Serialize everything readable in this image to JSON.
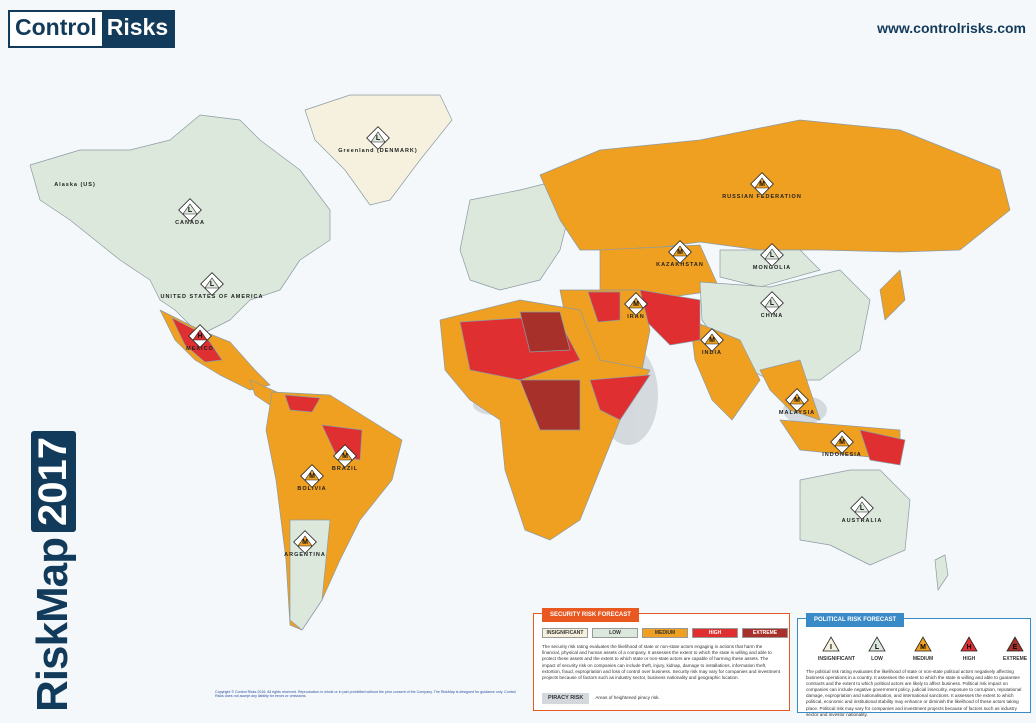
{
  "header": {
    "logo_left": "Control",
    "logo_right": "Risks",
    "url": "www.controlrisks.com"
  },
  "title": {
    "name": "RiskMap",
    "year": "2017"
  },
  "map": {
    "labels": [
      {
        "name": "Greenland (DENMARK)",
        "rating": "L"
      },
      {
        "name": "Alaska (US)"
      },
      {
        "name": "CANADA",
        "rating": "L"
      },
      {
        "name": "UNITED STATES OF AMERICA",
        "rating": "L"
      },
      {
        "name": "MEXICO",
        "rating": "H"
      },
      {
        "name": "BRAZIL",
        "rating": "M"
      },
      {
        "name": "BOLIVIA",
        "rating": "M"
      },
      {
        "name": "ARGENTINA",
        "rating": "M"
      },
      {
        "name": "RUSSIAN FEDERATION",
        "rating": "M"
      },
      {
        "name": "KAZAKHSTAN",
        "rating": "M"
      },
      {
        "name": "MONGOLIA",
        "rating": "L"
      },
      {
        "name": "CHINA",
        "rating": "L"
      },
      {
        "name": "INDIA",
        "rating": "M"
      },
      {
        "name": "IRAN",
        "rating": "M"
      },
      {
        "name": "MALAYSIA",
        "rating": "M"
      },
      {
        "name": "INDONESIA",
        "rating": "M"
      },
      {
        "name": "AUSTRALIA",
        "rating": "L"
      }
    ]
  },
  "legend": {
    "security": {
      "title": "SECURITY RISK FORECAST",
      "levels": [
        "INSIGNIFICANT",
        "LOW",
        "MEDIUM",
        "HIGH",
        "EXTREME"
      ],
      "description": "The security risk rating evaluates the likelihood of state or non-state actors engaging in actions that harm the financial, physical and human assets of a company. It assesses the extent to which the state is willing and able to protect these assets and the extent to which state or non-state actors are capable of harming these assets. The impact of security risk on companies can include theft, injury, kidnap, damage to installations, information theft, extortion, fraud, expropriation and loss of control over business. Security risk may vary for companies and investment projects because of factors such as industry sector, business nationality and geographic location.",
      "piracy_key": "PIRACY RISK",
      "piracy_text": "Areas of heightened piracy risk."
    },
    "political": {
      "title": "POLITICAL RISK FORECAST",
      "levels": [
        {
          "letter": "I",
          "name": "INSIGNIFICANT"
        },
        {
          "letter": "L",
          "name": "LOW"
        },
        {
          "letter": "M",
          "name": "MEDIUM"
        },
        {
          "letter": "H",
          "name": "HIGH"
        },
        {
          "letter": "E",
          "name": "EXTREME"
        }
      ],
      "description": "The political risk rating evaluates the likelihood of state or non-state political actors negatively affecting business operations in a country. It assesses the extent to which the state is willing and able to guarantee contracts and the extent to which political actors are likely to affect business. Political risk impact on companies can include negative government policy, judicial insecurity, exposure to corruption, reputational damage, expropriation and nationalisation, and international sanctions. It assesses the extent to which political, economic and institutional stability may enhance or diminish the likelihood of these actors taking place. Political risk may vary for companies and investment projects because of factors such as industry sector and investor nationality."
    }
  },
  "footer": "Copyright © Control Risks 2016. All rights reserved. Reproduction in whole or in part prohibited without the prior consent of the Company. The RiskMap is designed for guidance only. Control Risks does not accept any liability for errors or omissions."
}
